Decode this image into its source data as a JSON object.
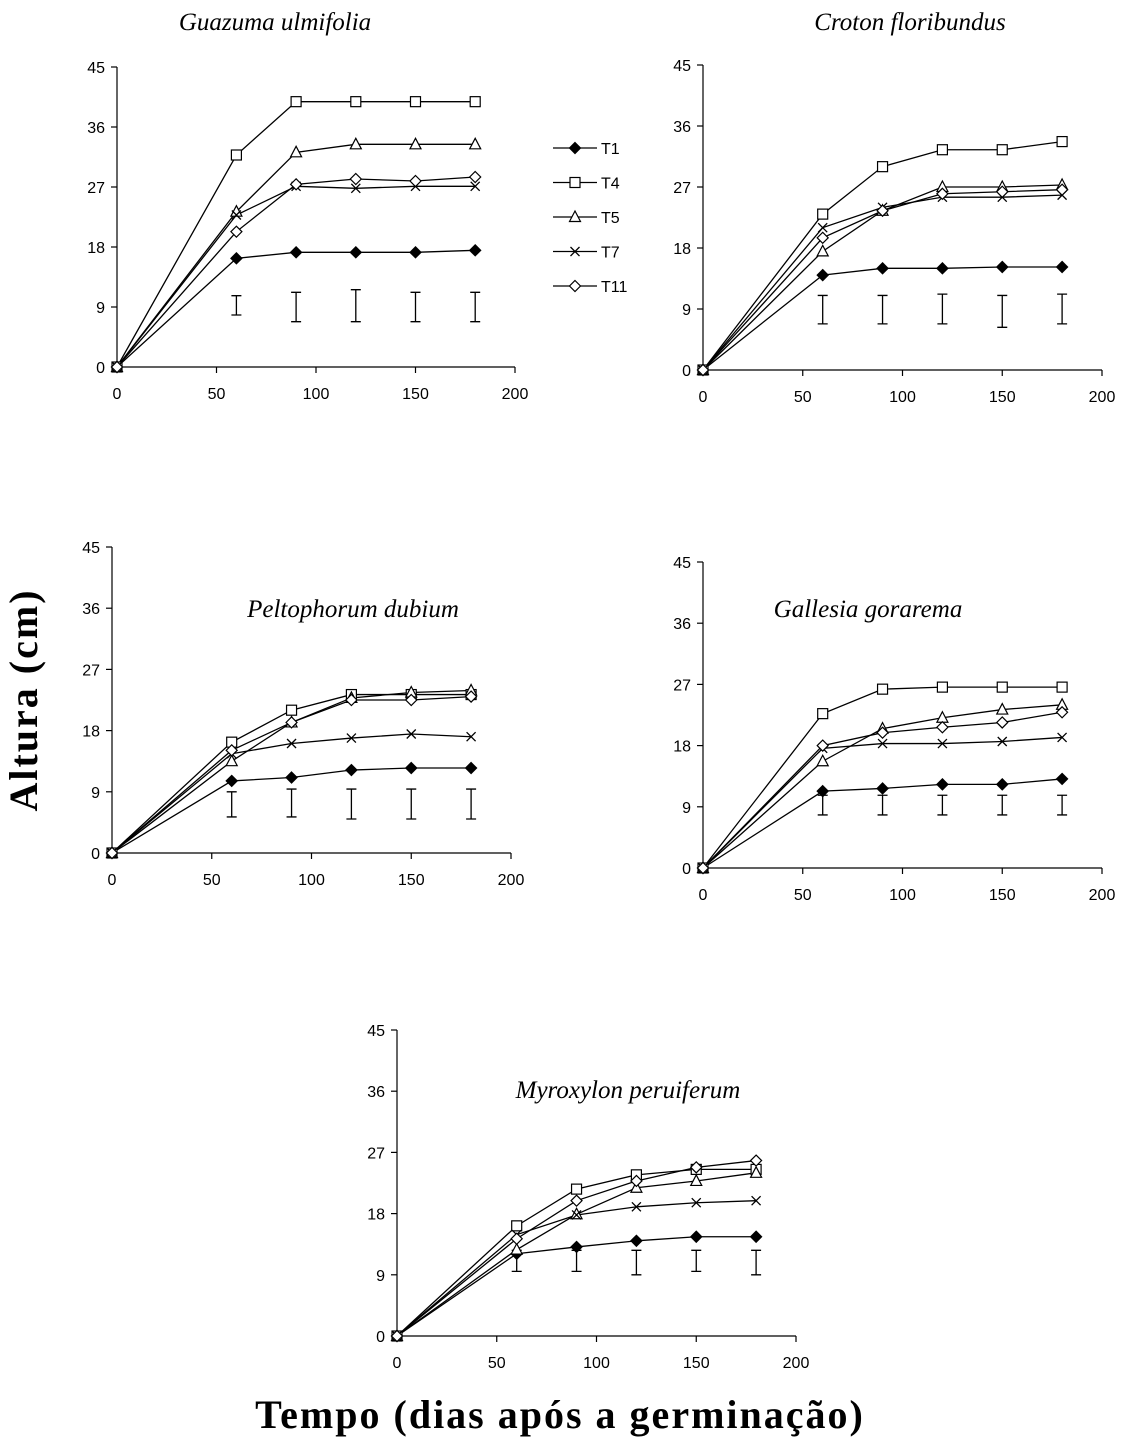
{
  "figure": {
    "ylabel": "Altura (cm)",
    "xlabel": "Tempo (dias após a germinação)"
  },
  "legend": [
    {
      "name": "T1",
      "marker": "diamond-filled"
    },
    {
      "name": "T4",
      "marker": "square-open"
    },
    {
      "name": "T5",
      "marker": "triangle-open"
    },
    {
      "name": "T7",
      "marker": "x"
    },
    {
      "name": "T11",
      "marker": "diamond-open"
    }
  ],
  "chart_data": [
    {
      "type": "line",
      "title": "Guazuma ulmifolia",
      "x": [
        0,
        60,
        90,
        120,
        150,
        180
      ],
      "xlim": [
        0,
        200
      ],
      "xticks": [
        0,
        50,
        100,
        150,
        200
      ],
      "ylim": [
        0,
        45
      ],
      "yticks": [
        0,
        9,
        18,
        27,
        36,
        45
      ],
      "series": [
        {
          "name": "T1",
          "values": [
            0,
            16.3,
            17.2,
            17.2,
            17.2,
            17.5
          ]
        },
        {
          "name": "T4",
          "values": [
            0,
            31.8,
            39.8,
            39.8,
            39.8,
            39.8
          ]
        },
        {
          "name": "T5",
          "values": [
            0,
            23.3,
            32.2,
            33.4,
            33.4,
            33.4
          ]
        },
        {
          "name": "T7",
          "values": [
            0,
            22.8,
            27.1,
            26.8,
            27.1,
            27.1
          ]
        },
        {
          "name": "T11",
          "values": [
            0,
            20.3,
            27.4,
            28.2,
            27.9,
            28.5
          ]
        }
      ],
      "error_bars": [
        {
          "x": 60,
          "low": 7.8,
          "high": 10.7
        },
        {
          "x": 90,
          "low": 6.8,
          "high": 11.2
        },
        {
          "x": 120,
          "low": 6.8,
          "high": 11.6
        },
        {
          "x": 150,
          "low": 6.8,
          "high": 11.2
        },
        {
          "x": 180,
          "low": 6.8,
          "high": 11.2
        }
      ]
    },
    {
      "type": "line",
      "title": "Croton floribundus",
      "x": [
        0,
        60,
        90,
        120,
        150,
        180
      ],
      "xlim": [
        0,
        200
      ],
      "xticks": [
        0,
        50,
        100,
        150,
        200
      ],
      "ylim": [
        0,
        45
      ],
      "yticks": [
        0,
        9,
        18,
        27,
        36,
        45
      ],
      "series": [
        {
          "name": "T1",
          "values": [
            0,
            14.0,
            15.0,
            15.0,
            15.2,
            15.2
          ]
        },
        {
          "name": "T4",
          "values": [
            0,
            23.0,
            30.0,
            32.5,
            32.5,
            33.7
          ]
        },
        {
          "name": "T5",
          "values": [
            0,
            17.5,
            23.5,
            27.0,
            27.0,
            27.3
          ]
        },
        {
          "name": "T7",
          "values": [
            0,
            21.0,
            24.0,
            25.5,
            25.5,
            25.8
          ]
        },
        {
          "name": "T11",
          "values": [
            0,
            19.5,
            23.5,
            26.0,
            26.3,
            26.6
          ]
        }
      ],
      "error_bars": [
        {
          "x": 60,
          "low": 6.8,
          "high": 11.0
        },
        {
          "x": 90,
          "low": 6.8,
          "high": 11.0
        },
        {
          "x": 120,
          "low": 6.8,
          "high": 11.2
        },
        {
          "x": 150,
          "low": 6.3,
          "high": 11.0
        },
        {
          "x": 180,
          "low": 6.8,
          "high": 11.2
        }
      ]
    },
    {
      "type": "line",
      "title": "Peltophorum dubium",
      "x": [
        0,
        60,
        90,
        120,
        150,
        180
      ],
      "xlim": [
        0,
        200
      ],
      "xticks": [
        0,
        50,
        100,
        150,
        200
      ],
      "ylim": [
        0,
        45
      ],
      "yticks": [
        0,
        9,
        18,
        27,
        36,
        45
      ],
      "series": [
        {
          "name": "T1",
          "values": [
            0,
            10.6,
            11.1,
            12.2,
            12.5,
            12.5
          ]
        },
        {
          "name": "T4",
          "values": [
            0,
            16.3,
            21.0,
            23.3,
            23.3,
            23.3
          ]
        },
        {
          "name": "T5",
          "values": [
            0,
            13.5,
            19.2,
            22.8,
            23.6,
            23.9
          ]
        },
        {
          "name": "T7",
          "values": [
            0,
            14.6,
            16.1,
            16.9,
            17.5,
            17.1
          ]
        },
        {
          "name": "T11",
          "values": [
            0,
            15.1,
            19.2,
            22.5,
            22.5,
            23.0
          ]
        }
      ],
      "error_bars": [
        {
          "x": 60,
          "low": 5.3,
          "high": 9.0
        },
        {
          "x": 90,
          "low": 5.3,
          "high": 9.4
        },
        {
          "x": 120,
          "low": 5.0,
          "high": 9.4
        },
        {
          "x": 150,
          "low": 5.0,
          "high": 9.4
        },
        {
          "x": 180,
          "low": 5.0,
          "high": 9.4
        }
      ]
    },
    {
      "type": "line",
      "title": "Gallesia gorarema",
      "x": [
        0,
        60,
        90,
        120,
        150,
        180
      ],
      "xlim": [
        0,
        200
      ],
      "xticks": [
        0,
        50,
        100,
        150,
        200
      ],
      "ylim": [
        0,
        45
      ],
      "yticks": [
        0,
        9,
        18,
        27,
        36,
        45
      ],
      "series": [
        {
          "name": "T1",
          "values": [
            0,
            11.3,
            11.7,
            12.3,
            12.3,
            13.1
          ]
        },
        {
          "name": "T4",
          "values": [
            0,
            22.7,
            26.3,
            26.6,
            26.6,
            26.6
          ]
        },
        {
          "name": "T5",
          "values": [
            0,
            15.7,
            20.5,
            22.1,
            23.3,
            24.0
          ]
        },
        {
          "name": "T7",
          "values": [
            0,
            17.6,
            18.3,
            18.3,
            18.6,
            19.2
          ]
        },
        {
          "name": "T11",
          "values": [
            0,
            18.0,
            19.9,
            20.7,
            21.4,
            22.9
          ]
        }
      ],
      "error_bars": [
        {
          "x": 60,
          "low": 7.8,
          "high": 10.7
        },
        {
          "x": 90,
          "low": 7.8,
          "high": 10.7
        },
        {
          "x": 120,
          "low": 7.8,
          "high": 10.7
        },
        {
          "x": 150,
          "low": 7.8,
          "high": 10.7
        },
        {
          "x": 180,
          "low": 7.8,
          "high": 10.7
        }
      ]
    },
    {
      "type": "line",
      "title": "Myroxylon peruiferum",
      "x": [
        0,
        60,
        90,
        120,
        150,
        180
      ],
      "xlim": [
        0,
        200
      ],
      "xticks": [
        0,
        50,
        100,
        150,
        200
      ],
      "ylim": [
        0,
        45
      ],
      "yticks": [
        0,
        9,
        18,
        27,
        36,
        45
      ],
      "series": [
        {
          "name": "T1",
          "values": [
            0,
            12.1,
            13.1,
            14.0,
            14.6,
            14.6
          ]
        },
        {
          "name": "T4",
          "values": [
            0,
            16.2,
            21.6,
            23.7,
            24.5,
            24.5
          ]
        },
        {
          "name": "T5",
          "values": [
            0,
            12.7,
            17.9,
            21.8,
            22.8,
            24.0
          ]
        },
        {
          "name": "T7",
          "values": [
            0,
            14.9,
            17.8,
            19.0,
            19.6,
            19.9
          ]
        },
        {
          "name": "T11",
          "values": [
            0,
            14.3,
            19.9,
            22.8,
            24.8,
            25.8
          ]
        }
      ],
      "error_bars": [
        {
          "x": 60,
          "low": 9.5,
          "high": 12.6
        },
        {
          "x": 90,
          "low": 9.5,
          "high": 12.6
        },
        {
          "x": 120,
          "low": 9.0,
          "high": 12.6
        },
        {
          "x": 150,
          "low": 9.5,
          "high": 12.6
        },
        {
          "x": 180,
          "low": 9.0,
          "high": 12.6
        }
      ]
    }
  ]
}
